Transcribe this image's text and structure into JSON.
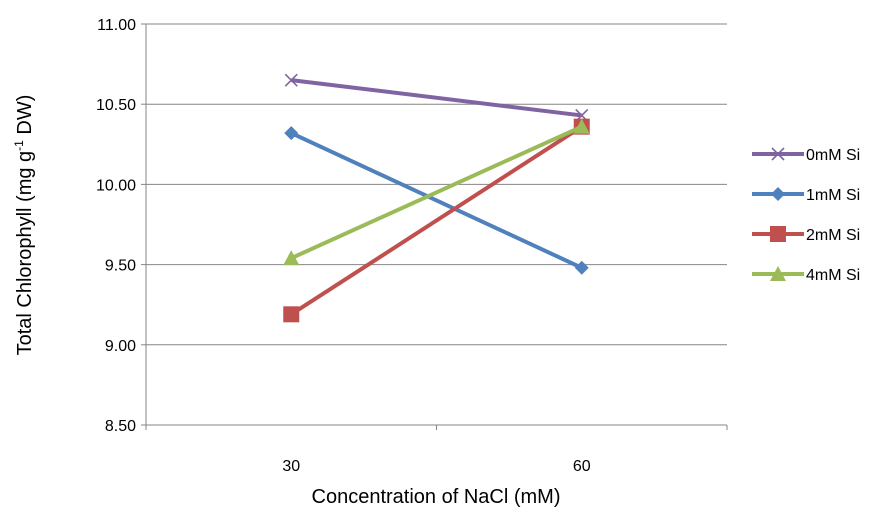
{
  "chart_data": {
    "type": "line",
    "title": "",
    "xlabel": "Concentration of NaCl (mM)",
    "ylabel": {
      "prefix": "Total Chlorophyll (mg g",
      "superscript": "-1",
      "suffix": " DW)"
    },
    "categories": [
      "30",
      "60"
    ],
    "ylim": [
      8.5,
      11.0
    ],
    "yticks": [
      "8.50",
      "9.00",
      "9.50",
      "10.00",
      "10.50",
      "11.00"
    ],
    "ytick_values": [
      8.5,
      9.0,
      9.5,
      10.0,
      10.5,
      11.0
    ],
    "grid": true,
    "legend_position": "right",
    "series": [
      {
        "name": "0mM Si",
        "values": [
          10.65,
          10.43
        ],
        "color": "#8064A2",
        "marker": "x"
      },
      {
        "name": "1mM Si",
        "values": [
          10.32,
          9.48
        ],
        "color": "#4F81BD",
        "marker": "diamond"
      },
      {
        "name": "2mM Si",
        "values": [
          9.19,
          10.36
        ],
        "color": "#C0504D",
        "marker": "square"
      },
      {
        "name": "4mM Si",
        "values": [
          9.54,
          10.36
        ],
        "color": "#9BBB59",
        "marker": "triangle"
      }
    ]
  }
}
